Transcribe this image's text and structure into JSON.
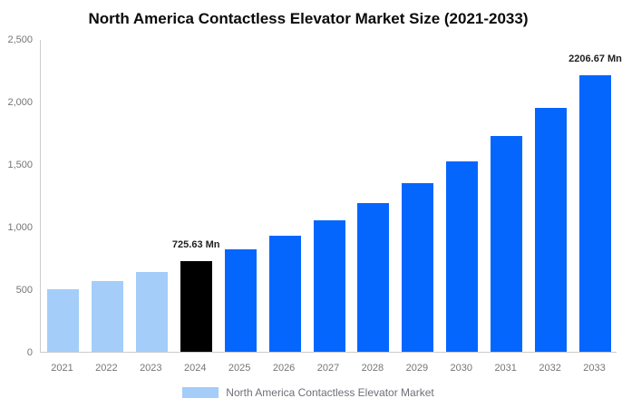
{
  "chart_data": {
    "type": "bar",
    "title": "North America Contactless Elevator Market Size (2021-2033)",
    "unit": "Mn",
    "categories": [
      "2021",
      "2022",
      "2023",
      "2024",
      "2025",
      "2026",
      "2027",
      "2028",
      "2029",
      "2030",
      "2031",
      "2032",
      "2033"
    ],
    "values": [
      500,
      566,
      641,
      725.63,
      821,
      929,
      1051,
      1190,
      1347,
      1524,
      1724,
      1951,
      2206.67
    ],
    "bar_roles": [
      "historical",
      "historical",
      "historical",
      "current",
      "forecast",
      "forecast",
      "forecast",
      "forecast",
      "forecast",
      "forecast",
      "forecast",
      "forecast",
      "forecast"
    ],
    "colors": {
      "historical": "#A4CDF9",
      "current": "#000000",
      "forecast": "#0566FE",
      "axis_line": "#cccccc",
      "tick_text": "#757575",
      "label_text": "#1f1f1f"
    },
    "data_labels": [
      {
        "category": "2024",
        "text": "725.63 Mn"
      },
      {
        "category": "2033",
        "text": "2206.67 Mn"
      }
    ],
    "ylim": [
      0,
      2500
    ],
    "yticks": [
      {
        "value": 0,
        "label": "0"
      },
      {
        "value": 500,
        "label": "500"
      },
      {
        "value": 1000,
        "label": "1,000"
      },
      {
        "value": 1500,
        "label": "1,500"
      },
      {
        "value": 2000,
        "label": "2,000"
      },
      {
        "value": 2500,
        "label": "2,500"
      }
    ],
    "grid": false,
    "legend_position": "bottom",
    "legend": [
      {
        "label": "North America Contactless Elevator Market",
        "swatch_color": "#A4CDF9"
      }
    ]
  }
}
